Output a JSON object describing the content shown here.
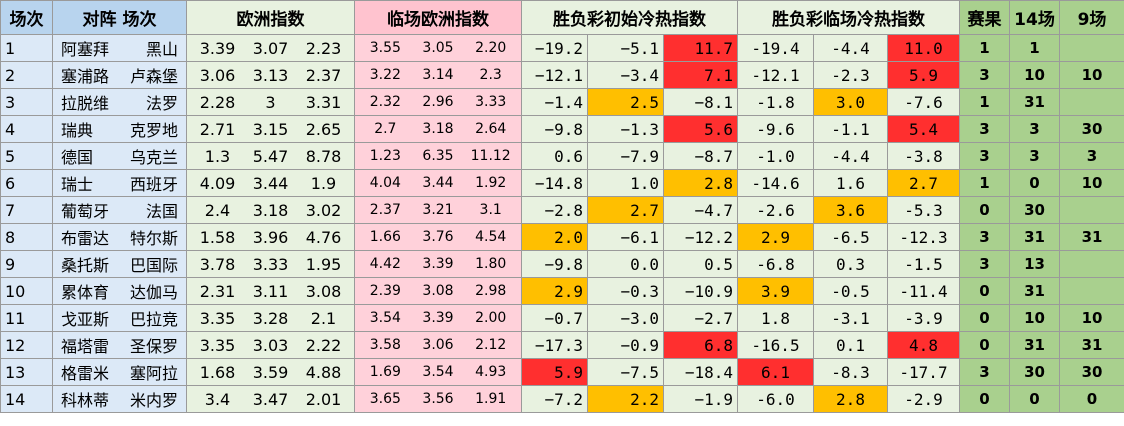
{
  "headers": {
    "idx": "场次",
    "teams": "对阵 场次",
    "euro": "欧洲指数",
    "live_euro": "临场欧洲指数",
    "initial": "胜负彩初始冷热指数",
    "live": "胜负彩临场冷热指数",
    "result": "赛果",
    "r14": "14场",
    "r9": "9场"
  },
  "colors": {
    "red_highlight": "#ff2f2f",
    "orange_highlight": "#ffbf00",
    "team_bg": "#dce9f7",
    "euro_bg": "#e8f2e0",
    "live_euro_bg": "#ffd1da",
    "result_bg": "#a9d08e"
  },
  "rows": [
    {
      "idx": "1",
      "home": "阿塞拜",
      "away": "黑山",
      "eu": [
        "3.39",
        "3.07",
        "2.23"
      ],
      "le": [
        "3.55",
        "3.05",
        "2.20"
      ],
      "ini": [
        "−19.2",
        "−5.1",
        "11.7"
      ],
      "ini_hl": [
        "",
        "",
        "red"
      ],
      "lt": [
        "-19.4",
        "-4.4",
        "11.0"
      ],
      "lt_hl": [
        "",
        "",
        "red"
      ],
      "res": "1",
      "r14": "1",
      "r9": ""
    },
    {
      "idx": "2",
      "home": "塞浦路",
      "away": "卢森堡",
      "eu": [
        "3.06",
        "3.13",
        "2.37"
      ],
      "le": [
        "3.22",
        "3.14",
        "2.3"
      ],
      "ini": [
        "−12.1",
        "−3.4",
        "7.1"
      ],
      "ini_hl": [
        "",
        "",
        "red"
      ],
      "lt": [
        "-12.1",
        "-2.3",
        "5.9"
      ],
      "lt_hl": [
        "",
        "",
        "red"
      ],
      "res": "3",
      "r14": "10",
      "r9": "10"
    },
    {
      "idx": "3",
      "home": "拉脱维",
      "away": "法罗",
      "eu": [
        "2.28",
        "3",
        "3.31"
      ],
      "le": [
        "2.32",
        "2.96",
        "3.33"
      ],
      "ini": [
        "−1.4",
        "2.5",
        "−8.1"
      ],
      "ini_hl": [
        "",
        "org",
        ""
      ],
      "lt": [
        "-1.8",
        "3.0",
        "-7.6"
      ],
      "lt_hl": [
        "",
        "org",
        ""
      ],
      "res": "1",
      "r14": "31",
      "r9": ""
    },
    {
      "idx": "4",
      "home": "瑞典",
      "away": "克罗地",
      "eu": [
        "2.71",
        "3.15",
        "2.65"
      ],
      "le": [
        "2.7",
        "3.18",
        "2.64"
      ],
      "ini": [
        "−9.8",
        "−1.3",
        "5.6"
      ],
      "ini_hl": [
        "",
        "",
        "red"
      ],
      "lt": [
        "-9.6",
        "-1.1",
        "5.4"
      ],
      "lt_hl": [
        "",
        "",
        "red"
      ],
      "res": "3",
      "r14": "3",
      "r9": "30"
    },
    {
      "idx": "5",
      "home": "德国",
      "away": "乌克兰",
      "eu": [
        "1.3",
        "5.47",
        "8.78"
      ],
      "le": [
        "1.23",
        "6.35",
        "11.12"
      ],
      "ini": [
        "0.6",
        "−7.9",
        "−8.7"
      ],
      "ini_hl": [
        "",
        "",
        ""
      ],
      "lt": [
        "-1.0",
        "-4.4",
        "-3.8"
      ],
      "lt_hl": [
        "",
        "",
        ""
      ],
      "res": "3",
      "r14": "3",
      "r9": "3"
    },
    {
      "idx": "6",
      "home": "瑞士",
      "away": "西班牙",
      "eu": [
        "4.09",
        "3.44",
        "1.9"
      ],
      "le": [
        "4.04",
        "3.44",
        "1.92"
      ],
      "ini": [
        "−14.8",
        "1.0",
        "2.8"
      ],
      "ini_hl": [
        "",
        "",
        "org"
      ],
      "lt": [
        "-14.6",
        "1.6",
        "2.7"
      ],
      "lt_hl": [
        "",
        "",
        "org"
      ],
      "res": "1",
      "r14": "0",
      "r9": "10"
    },
    {
      "idx": "7",
      "home": "葡萄牙",
      "away": "法国",
      "eu": [
        "2.4",
        "3.18",
        "3.02"
      ],
      "le": [
        "2.37",
        "3.21",
        "3.1"
      ],
      "ini": [
        "−2.8",
        "2.7",
        "−4.7"
      ],
      "ini_hl": [
        "",
        "org",
        ""
      ],
      "lt": [
        "-2.6",
        "3.6",
        "-5.3"
      ],
      "lt_hl": [
        "",
        "org",
        ""
      ],
      "res": "0",
      "r14": "30",
      "r9": ""
    },
    {
      "idx": "8",
      "home": "布雷达",
      "away": "特尔斯",
      "eu": [
        "1.58",
        "3.96",
        "4.76"
      ],
      "le": [
        "1.66",
        "3.76",
        "4.54"
      ],
      "ini": [
        "2.0",
        "−6.1",
        "−12.2"
      ],
      "ini_hl": [
        "org",
        "",
        ""
      ],
      "lt": [
        "2.9",
        "-6.5",
        "-12.3"
      ],
      "lt_hl": [
        "org",
        "",
        ""
      ],
      "res": "3",
      "r14": "31",
      "r9": "31"
    },
    {
      "idx": "9",
      "home": "桑托斯",
      "away": "巴国际",
      "eu": [
        "3.78",
        "3.33",
        "1.95"
      ],
      "le": [
        "4.42",
        "3.39",
        "1.80"
      ],
      "ini": [
        "−9.8",
        "0.0",
        "0.5"
      ],
      "ini_hl": [
        "",
        "",
        ""
      ],
      "lt": [
        "-6.8",
        "0.3",
        "-1.5"
      ],
      "lt_hl": [
        "",
        "",
        ""
      ],
      "res": "3",
      "r14": "13",
      "r9": ""
    },
    {
      "idx": "10",
      "home": "累体育",
      "away": "达伽马",
      "eu": [
        "2.31",
        "3.11",
        "3.08"
      ],
      "le": [
        "2.39",
        "3.08",
        "2.98"
      ],
      "ini": [
        "2.9",
        "−0.3",
        "−10.9"
      ],
      "ini_hl": [
        "org",
        "",
        ""
      ],
      "lt": [
        "3.9",
        "-0.5",
        "-11.4"
      ],
      "lt_hl": [
        "org",
        "",
        ""
      ],
      "res": "0",
      "r14": "31",
      "r9": ""
    },
    {
      "idx": "11",
      "home": "戈亚斯",
      "away": "巴拉竞",
      "eu": [
        "3.35",
        "3.28",
        "2.1"
      ],
      "le": [
        "3.54",
        "3.39",
        "2.00"
      ],
      "ini": [
        "−0.7",
        "−3.0",
        "−2.7"
      ],
      "ini_hl": [
        "",
        "",
        ""
      ],
      "lt": [
        "1.8",
        "-3.1",
        "-3.9"
      ],
      "lt_hl": [
        "",
        "",
        ""
      ],
      "res": "0",
      "r14": "10",
      "r9": "10"
    },
    {
      "idx": "12",
      "home": "福塔雷",
      "away": "圣保罗",
      "eu": [
        "3.35",
        "3.03",
        "2.22"
      ],
      "le": [
        "3.58",
        "3.06",
        "2.12"
      ],
      "ini": [
        "−17.3",
        "−0.9",
        "6.8"
      ],
      "ini_hl": [
        "",
        "",
        "red"
      ],
      "lt": [
        "-16.5",
        "0.1",
        "4.8"
      ],
      "lt_hl": [
        "",
        "",
        "red"
      ],
      "res": "0",
      "r14": "31",
      "r9": "31"
    },
    {
      "idx": "13",
      "home": "格雷米",
      "away": "塞阿拉",
      "eu": [
        "1.68",
        "3.59",
        "4.88"
      ],
      "le": [
        "1.69",
        "3.54",
        "4.93"
      ],
      "ini": [
        "5.9",
        "−7.5",
        "−18.4"
      ],
      "ini_hl": [
        "red",
        "",
        ""
      ],
      "lt": [
        "6.1",
        "-8.3",
        "-17.7"
      ],
      "lt_hl": [
        "red",
        "",
        ""
      ],
      "res": "3",
      "r14": "30",
      "r9": "30"
    },
    {
      "idx": "14",
      "home": "科林蒂",
      "away": "米内罗",
      "eu": [
        "3.4",
        "3.47",
        "2.01"
      ],
      "le": [
        "3.65",
        "3.56",
        "1.91"
      ],
      "ini": [
        "−7.2",
        "2.2",
        "−1.9"
      ],
      "ini_hl": [
        "",
        "org",
        ""
      ],
      "lt": [
        "-6.0",
        "2.8",
        "-2.9"
      ],
      "lt_hl": [
        "",
        "org",
        ""
      ],
      "res": "0",
      "r14": "0",
      "r9": "0"
    }
  ]
}
